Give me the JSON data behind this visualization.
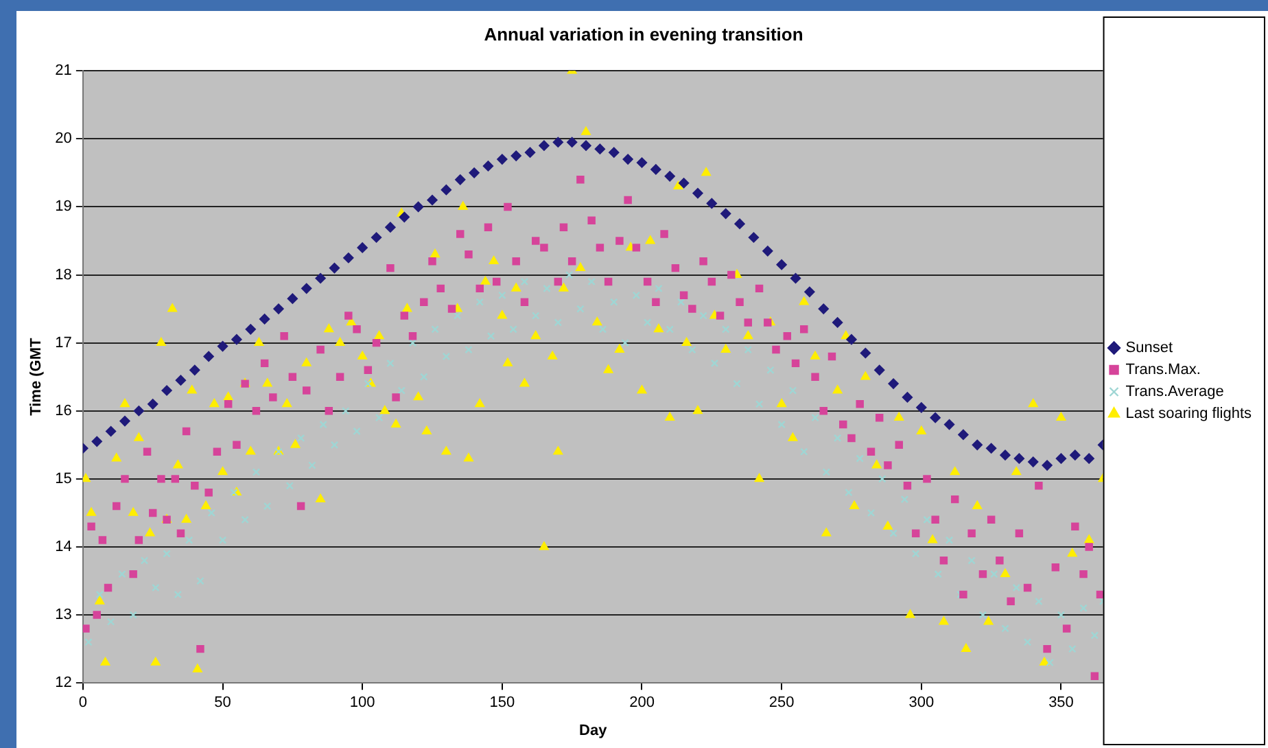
{
  "chart_data": {
    "type": "scatter",
    "title": "Annual variation in evening transition",
    "xlabel": "Day",
    "ylabel": "Time (GMT",
    "xlim": [
      0,
      365
    ],
    "xticks": [
      0,
      50,
      100,
      150,
      200,
      250,
      300,
      350
    ],
    "ylim": [
      12,
      21
    ],
    "yticks": [
      12,
      13,
      14,
      15,
      16,
      17,
      18,
      19,
      20,
      21
    ],
    "grid": "y",
    "legend": "right",
    "series": [
      {
        "name": "Sunset",
        "color": "#1f1a7a",
        "marker": "diamond",
        "x": [
          0,
          5,
          10,
          15,
          20,
          25,
          30,
          35,
          40,
          45,
          50,
          55,
          60,
          65,
          70,
          75,
          80,
          85,
          90,
          95,
          100,
          105,
          110,
          115,
          120,
          125,
          130,
          135,
          140,
          145,
          150,
          155,
          160,
          165,
          170,
          175,
          180,
          185,
          190,
          195,
          200,
          205,
          210,
          215,
          220,
          225,
          230,
          235,
          240,
          245,
          250,
          255,
          260,
          265,
          270,
          275,
          280,
          285,
          290,
          295,
          300,
          305,
          310,
          315,
          320,
          325,
          330,
          335,
          340,
          345,
          350,
          355,
          360,
          365
        ],
        "values": [
          15.45,
          15.55,
          15.7,
          15.85,
          16.0,
          16.1,
          16.3,
          16.45,
          16.6,
          16.8,
          16.95,
          17.05,
          17.2,
          17.35,
          17.5,
          17.65,
          17.8,
          17.95,
          18.1,
          18.25,
          18.4,
          18.55,
          18.7,
          18.85,
          19.0,
          19.1,
          19.25,
          19.4,
          19.5,
          19.6,
          19.7,
          19.75,
          19.8,
          19.9,
          19.95,
          19.95,
          19.9,
          19.85,
          19.8,
          19.7,
          19.65,
          19.55,
          19.45,
          19.35,
          19.2,
          19.05,
          18.9,
          18.75,
          18.55,
          18.35,
          18.15,
          17.95,
          17.75,
          17.5,
          17.3,
          17.05,
          16.85,
          16.6,
          16.4,
          16.2,
          16.05,
          15.9,
          15.8,
          15.65,
          15.5,
          15.45,
          15.35,
          15.3,
          15.25,
          15.2,
          15.3,
          15.35,
          15.3,
          15.5
        ]
      },
      {
        "name": "Trans.Max.",
        "color": "#d6449a",
        "marker": "square",
        "x": [
          1,
          3,
          5,
          7,
          9,
          12,
          15,
          18,
          20,
          23,
          25,
          28,
          30,
          33,
          35,
          37,
          40,
          42,
          45,
          48,
          52,
          55,
          58,
          62,
          65,
          68,
          72,
          75,
          78,
          80,
          85,
          88,
          92,
          95,
          98,
          102,
          105,
          110,
          112,
          115,
          118,
          122,
          125,
          128,
          132,
          135,
          138,
          142,
          145,
          148,
          152,
          155,
          158,
          162,
          165,
          170,
          172,
          175,
          178,
          182,
          185,
          188,
          192,
          195,
          198,
          202,
          205,
          208,
          212,
          215,
          218,
          222,
          225,
          228,
          232,
          235,
          238,
          242,
          245,
          248,
          252,
          255,
          258,
          262,
          265,
          268,
          272,
          275,
          278,
          282,
          285,
          288,
          292,
          295,
          298,
          302,
          305,
          308,
          312,
          315,
          318,
          322,
          325,
          328,
          332,
          335,
          338,
          342,
          345,
          348,
          352,
          355,
          358,
          360,
          362,
          364
        ],
        "values": [
          12.8,
          14.3,
          13.0,
          14.1,
          13.4,
          14.6,
          15.0,
          13.6,
          14.1,
          15.4,
          14.5,
          15.0,
          14.4,
          15.0,
          14.2,
          15.7,
          14.9,
          12.5,
          14.8,
          15.4,
          16.1,
          15.5,
          16.4,
          16.0,
          16.7,
          16.2,
          17.1,
          16.5,
          14.6,
          16.3,
          16.9,
          16.0,
          16.5,
          17.4,
          17.2,
          16.6,
          17.0,
          18.1,
          16.2,
          17.4,
          17.1,
          17.6,
          18.2,
          17.8,
          17.5,
          18.6,
          18.3,
          17.8,
          18.7,
          17.9,
          19.0,
          18.2,
          17.6,
          18.5,
          18.4,
          17.9,
          18.7,
          18.2,
          19.4,
          18.8,
          18.4,
          17.9,
          18.5,
          19.1,
          18.4,
          17.9,
          17.6,
          18.6,
          18.1,
          17.7,
          17.5,
          18.2,
          17.9,
          17.4,
          18.0,
          17.6,
          17.3,
          17.8,
          17.3,
          16.9,
          17.1,
          16.7,
          17.2,
          16.5,
          16.0,
          16.8,
          15.8,
          15.6,
          16.1,
          15.4,
          15.9,
          15.2,
          15.5,
          14.9,
          14.2,
          15.0,
          14.4,
          13.8,
          14.7,
          13.3,
          14.2,
          13.6,
          14.4,
          13.8,
          13.2,
          14.2,
          13.4,
          14.9,
          12.5,
          13.7,
          12.8,
          14.3,
          13.6,
          14.0,
          12.1,
          13.3
        ]
      },
      {
        "name": "Trans.Average",
        "color": "#9fd6d4",
        "marker": "cross",
        "x": [
          2,
          6,
          10,
          14,
          18,
          22,
          26,
          30,
          34,
          38,
          42,
          46,
          50,
          54,
          58,
          62,
          66,
          70,
          74,
          78,
          82,
          86,
          90,
          94,
          98,
          102,
          106,
          110,
          114,
          118,
          122,
          126,
          130,
          134,
          138,
          142,
          146,
          150,
          154,
          158,
          162,
          166,
          170,
          174,
          178,
          182,
          186,
          190,
          194,
          198,
          202,
          206,
          210,
          214,
          218,
          222,
          226,
          230,
          234,
          238,
          242,
          246,
          250,
          254,
          258,
          262,
          266,
          270,
          274,
          278,
          282,
          286,
          290,
          294,
          298,
          302,
          306,
          310,
          314,
          318,
          322,
          326,
          330,
          334,
          338,
          342,
          346,
          350,
          354,
          358,
          362,
          365
        ],
        "values": [
          12.6,
          13.3,
          12.9,
          13.6,
          13.0,
          13.8,
          13.4,
          13.9,
          13.3,
          14.1,
          13.5,
          14.5,
          14.1,
          14.8,
          14.4,
          15.1,
          14.6,
          15.4,
          14.9,
          15.6,
          15.2,
          15.8,
          15.5,
          16.0,
          15.7,
          16.4,
          15.9,
          16.7,
          16.3,
          17.0,
          16.5,
          17.2,
          16.8,
          17.4,
          16.9,
          17.6,
          17.1,
          17.7,
          17.2,
          17.9,
          17.4,
          17.8,
          17.3,
          18.0,
          17.5,
          17.9,
          17.2,
          17.6,
          17.0,
          17.7,
          17.3,
          17.8,
          17.2,
          17.6,
          16.9,
          17.4,
          16.7,
          17.2,
          16.4,
          16.9,
          16.1,
          16.6,
          15.8,
          16.3,
          15.4,
          15.9,
          15.1,
          15.6,
          14.8,
          15.3,
          14.5,
          15.0,
          14.2,
          14.7,
          13.9,
          14.4,
          13.6,
          14.1,
          13.3,
          13.8,
          13.0,
          13.6,
          12.8,
          13.4,
          12.6,
          13.2,
          12.3,
          13.0,
          12.5,
          13.1,
          12.7,
          13.2
        ]
      },
      {
        "name": "Last soaring flights",
        "color": "#ffee00",
        "marker": "triangle",
        "x": [
          1,
          3,
          6,
          8,
          12,
          15,
          18,
          20,
          24,
          26,
          28,
          30,
          32,
          34,
          37,
          39,
          41,
          44,
          47,
          50,
          52,
          55,
          58,
          60,
          63,
          66,
          70,
          73,
          76,
          80,
          85,
          88,
          92,
          96,
          100,
          103,
          106,
          108,
          112,
          114,
          116,
          120,
          123,
          126,
          130,
          134,
          136,
          138,
          142,
          144,
          147,
          150,
          152,
          155,
          158,
          162,
          165,
          168,
          170,
          172,
          175,
          178,
          180,
          184,
          188,
          192,
          196,
          200,
          203,
          206,
          210,
          213,
          216,
          220,
          223,
          226,
          230,
          234,
          238,
          242,
          246,
          250,
          254,
          258,
          262,
          266,
          270,
          273,
          276,
          280,
          284,
          288,
          292,
          296,
          300,
          304,
          308,
          312,
          316,
          320,
          324,
          330,
          334,
          340,
          344,
          350,
          354,
          360,
          365
        ],
        "values": [
          15.0,
          14.5,
          13.2,
          12.3,
          15.3,
          16.1,
          14.5,
          15.6,
          14.2,
          12.3,
          17.0,
          14.4,
          17.5,
          15.2,
          14.4,
          16.3,
          12.2,
          14.6,
          16.1,
          15.1,
          16.2,
          14.8,
          16.4,
          15.4,
          17.0,
          16.4,
          15.4,
          16.1,
          15.5,
          16.7,
          14.7,
          17.2,
          17.0,
          17.3,
          16.8,
          16.4,
          17.1,
          16.0,
          15.8,
          18.9,
          17.5,
          16.2,
          15.7,
          18.3,
          15.4,
          17.5,
          19.0,
          15.3,
          16.1,
          17.9,
          18.2,
          17.4,
          16.7,
          17.8,
          16.4,
          17.1,
          14.0,
          16.8,
          15.4,
          17.8,
          21.0,
          18.1,
          20.1,
          17.3,
          16.6,
          16.9,
          18.4,
          16.3,
          18.5,
          17.2,
          15.9,
          19.3,
          17.0,
          16.0,
          19.5,
          17.4,
          16.9,
          18.0,
          17.1,
          15.0,
          17.3,
          16.1,
          15.6,
          17.6,
          16.8,
          14.2,
          16.3,
          17.1,
          14.6,
          16.5,
          15.2,
          14.3,
          15.9,
          13.0,
          15.7,
          14.1,
          12.9,
          15.1,
          12.5,
          14.6,
          12.9,
          13.6,
          15.1,
          16.1,
          12.3,
          15.9,
          13.9,
          14.1,
          15.0
        ]
      }
    ]
  }
}
